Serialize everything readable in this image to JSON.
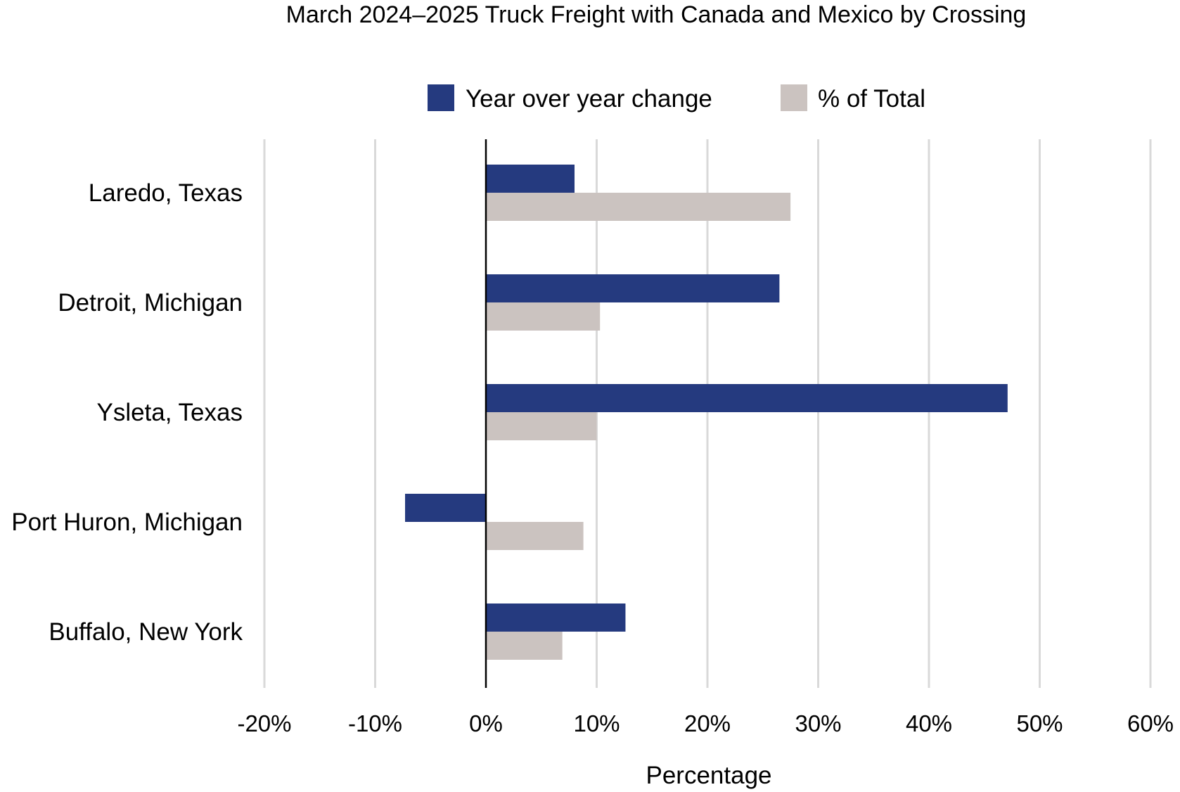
{
  "chart_data": {
    "type": "bar",
    "orientation": "horizontal",
    "title": "March 2024–2025 Truck Freight with Canada and Mexico by Crossing",
    "xlabel": "Percentage",
    "ylabel": "",
    "categories": [
      "Laredo, Texas",
      "Detroit, Michigan",
      "Ysleta, Texas",
      "Port Huron, Michigan",
      "Buffalo, New York"
    ],
    "series": [
      {
        "name": "Year over year change",
        "color": "#253a7f",
        "values": [
          8.0,
          26.5,
          47.1,
          -7.3,
          12.6
        ]
      },
      {
        "name": "% of Total",
        "color": "#cbc3c0",
        "values": [
          27.5,
          10.3,
          10.0,
          8.8,
          6.9
        ]
      }
    ],
    "xlim": [
      -20,
      60
    ],
    "xticks": [
      -20,
      -10,
      0,
      10,
      20,
      30,
      40,
      50,
      60
    ],
    "xtick_labels": [
      "-20%",
      "-10%",
      "0%",
      "10%",
      "20%",
      "30%",
      "40%",
      "50%",
      "60%"
    ],
    "grid": "vertical",
    "legend": "top-center"
  }
}
